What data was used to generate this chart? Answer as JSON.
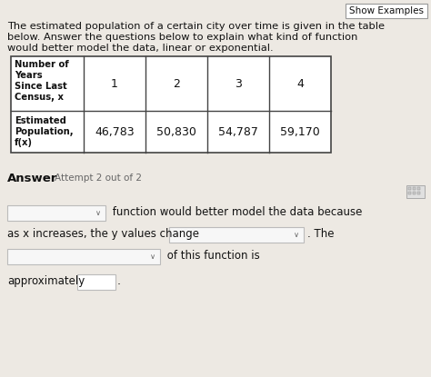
{
  "show_examples_text": "Show Examples",
  "intro_line1": "The estimated population of a certain city over time is given in the table",
  "intro_line2": "below. Answer the questions below to explain what kind of function",
  "intro_line3": "would better model the data, linear or exponential.",
  "col0_row1_lines": [
    "Number of",
    "Years",
    "Since Last",
    "Census, x"
  ],
  "col0_row2_lines": [
    "Estimated",
    "Population,",
    "f(x)"
  ],
  "x_vals": [
    "1",
    "2",
    "3",
    "4"
  ],
  "fx_vals": [
    "46,783",
    "50,830",
    "54,787",
    "59,170"
  ],
  "answer_label": "Answer",
  "attempt_label": "Attempt 2 out of 2",
  "line1_suffix": " function would better model the data because",
  "line2_text": "as x increases, the y values change",
  "line2_end": ". The",
  "line3_end": " of this function is",
  "line4_prefix": "approximately",
  "bg_color": "#ede9e3",
  "table_bg": "#ffffff",
  "border_color": "#444444",
  "dropdown_bg": "#f7f7f7",
  "dropdown_border": "#bbbbbb",
  "text_color": "#111111",
  "gray_text": "#666666"
}
